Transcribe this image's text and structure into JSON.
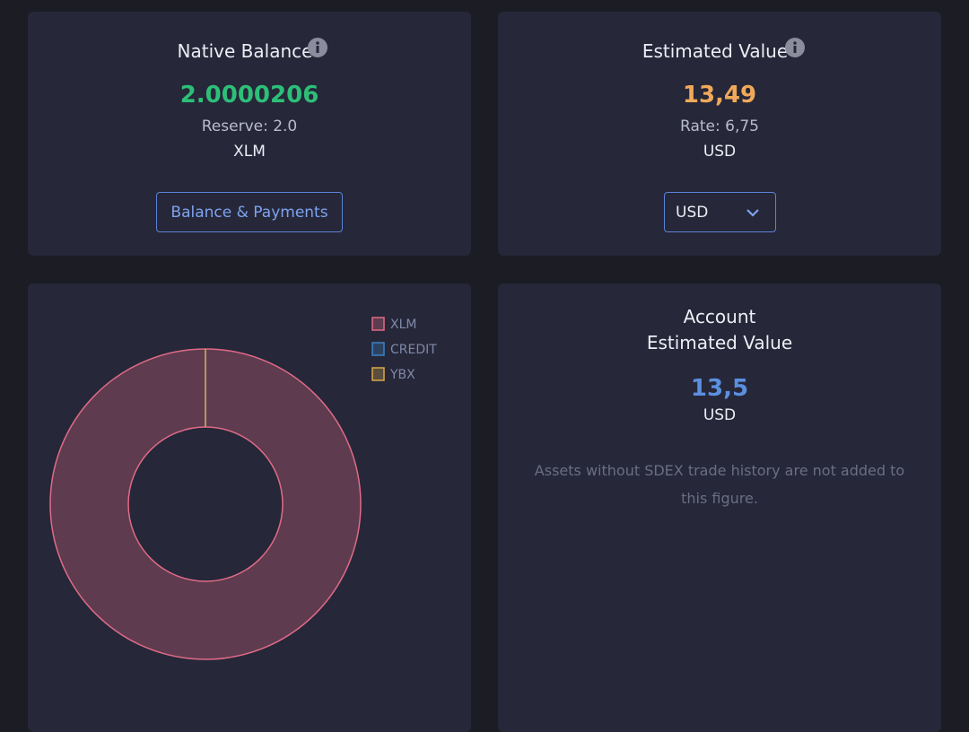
{
  "native_balance": {
    "title": "Native Balance",
    "value": "2.0000206",
    "reserve": "Reserve: 2.0",
    "unit": "XLM",
    "button": "Balance & Payments"
  },
  "estimated_value": {
    "title": "Estimated Value",
    "value": "13,49",
    "rate": "Rate: 6,75",
    "unit": "USD",
    "select": "USD"
  },
  "chart_data": {
    "type": "doughnut",
    "categories": [
      "XLM",
      "CREDIT",
      "YBX"
    ],
    "values": [
      100,
      0,
      0
    ],
    "colors": [
      "#e06b86",
      "#3b82c4",
      "#d9a94a"
    ]
  },
  "account_value": {
    "title_line1": "Account",
    "title_line2": "Estimated Value",
    "value": "13,5",
    "unit": "USD",
    "note": "Assets without SDEX trade history are not added to this figure."
  }
}
